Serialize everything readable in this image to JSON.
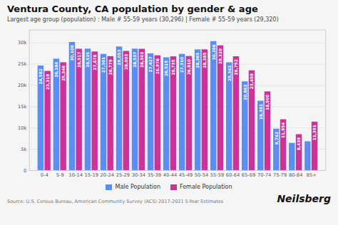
{
  "chart_data": {
    "type": "bar",
    "title": "Ventura County, CA population by gender & age",
    "subtitle": "Largest age group (population) : Male # 55-59 years (30,296) | Female # 55-59 years (29,320)",
    "annotations": [
      "Source: U.S. Census Bureau, American Community Survey (ACS) 2017-2021 5-Year Estimates",
      "Neilsberg"
    ],
    "categories": [
      "0-4",
      "5-9",
      "10-14",
      "15-19",
      "20-24",
      "25-29",
      "30-34",
      "35-39",
      "40-44",
      "45-49",
      "50-54",
      "55-59",
      "60-64",
      "65-69",
      "70-74",
      "75-79",
      "80-84",
      "85+"
    ],
    "series": [
      {
        "name": "Male Population",
        "color": "#5b8df5",
        "values": [
          24582,
          26184,
          30106,
          28535,
          27301,
          29053,
          28537,
          27427,
          26515,
          27310,
          28365,
          30296,
          25342,
          20862,
          16301,
          9742,
          6403,
          6782
        ],
        "value_labels": [
          "24,582",
          "26,184",
          "30,106",
          "28,535",
          "27,301",
          "29,053",
          "28,537",
          "27,427",
          "26,515",
          "27,310",
          "28,365",
          "30,296",
          "25,342",
          "20,862",
          "16,301",
          "9,742",
          null,
          null
        ]
      },
      {
        "name": "Female Population",
        "color": "#cc3399",
        "values": [
          23319,
          25346,
          28517,
          27878,
          26779,
          28003,
          28503,
          26976,
          26735,
          26810,
          28385,
          29320,
          26752,
          23459,
          18500,
          11954,
          8439,
          11391
        ],
        "value_labels": [
          "23,319",
          "25,346",
          "28,517",
          "27,878",
          "26,779",
          "28,003",
          "28,503",
          "26,976",
          "26,735",
          "26,810",
          "28,385",
          "29,320",
          "26,752",
          "23,459",
          "18,500",
          "11,954",
          "8,439",
          "11,391"
        ]
      }
    ],
    "ylim": [
      0,
      33000
    ],
    "yticks": [
      0,
      {
        "value": 5000,
        "label": "5k"
      },
      {
        "value": 10000,
        "label": "10k"
      },
      {
        "value": 15000,
        "label": "15k"
      },
      {
        "value": 20000,
        "label": "20k"
      },
      {
        "value": 25000,
        "label": "25k"
      },
      {
        "value": 30000,
        "label": "30k"
      }
    ],
    "grid": true,
    "legend": "bottom",
    "data_labels": true
  }
}
